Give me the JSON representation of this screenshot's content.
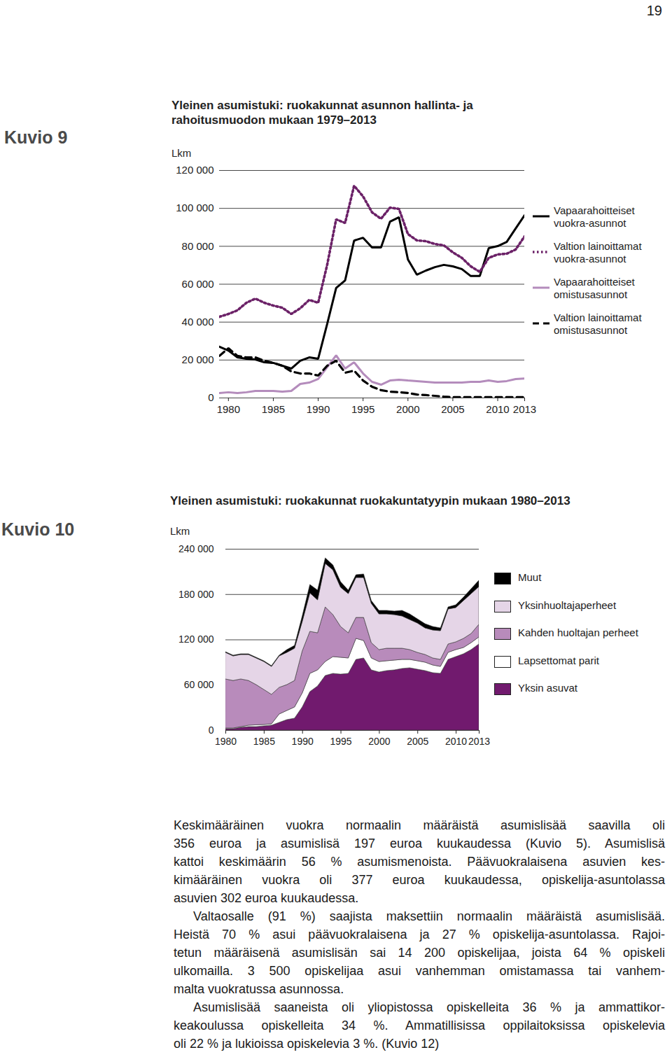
{
  "page_number": "19",
  "chart_data": [
    {
      "figure_label": "Kuvio 9",
      "type": "line",
      "title": "Yleinen asumistuki: ruokakunnat asunnon hallinta- ja rahoitusmuodon mukaan 1979–2013",
      "ylabel": "Lkm",
      "x": [
        1979,
        1980,
        1981,
        1982,
        1983,
        1984,
        1985,
        1986,
        1987,
        1988,
        1989,
        1990,
        1991,
        1992,
        1993,
        1994,
        1995,
        1996,
        1997,
        1998,
        1999,
        2000,
        2001,
        2002,
        2003,
        2004,
        2005,
        2006,
        2007,
        2008,
        2009,
        2010,
        2011,
        2012,
        2013
      ],
      "series": [
        {
          "name": "Vapaarahoitteiset vuokra-asunnot",
          "color": "#000000",
          "line_style": "solid",
          "values": [
            27000,
            25000,
            21400,
            20700,
            20300,
            18800,
            18500,
            17000,
            15500,
            19600,
            21400,
            20700,
            39000,
            58000,
            62000,
            83000,
            84500,
            79400,
            79400,
            93000,
            95300,
            73000,
            65000,
            67200,
            69000,
            70200,
            69400,
            68000,
            64300,
            64300,
            79000,
            80100,
            82300,
            89400,
            96400
          ]
        },
        {
          "name": "Valtion lainoittamat vuokra-asunnot",
          "color": "#6b2167",
          "line_style": "dotted",
          "values": [
            42800,
            44300,
            46200,
            50200,
            52400,
            50200,
            48700,
            47600,
            44300,
            47300,
            51700,
            50200,
            70200,
            94200,
            92300,
            111900,
            106300,
            97900,
            94500,
            100400,
            99700,
            86400,
            83100,
            82700,
            81200,
            80500,
            76800,
            73900,
            69400,
            66500,
            73900,
            75700,
            76100,
            78300,
            85300
          ]
        },
        {
          "name": "Vapaarahoitteiset omistusasunnot",
          "color": "#b48cbc",
          "line_style": "solid",
          "values": [
            2600,
            3000,
            2600,
            3000,
            3700,
            3700,
            3700,
            3300,
            3700,
            7400,
            8100,
            10000,
            16200,
            22500,
            15500,
            18800,
            12900,
            8500,
            7000,
            9200,
            9600,
            9200,
            8900,
            8500,
            8100,
            8100,
            8100,
            8100,
            8500,
            8500,
            9200,
            8500,
            8900,
            10000,
            10300
          ]
        },
        {
          "name": "Valtion lainoittamat omistusasunnot",
          "color": "#000000",
          "line_style": "dashed",
          "values": [
            22200,
            26200,
            22200,
            21400,
            21400,
            19600,
            18500,
            17000,
            14000,
            12900,
            12900,
            11800,
            17000,
            19600,
            13300,
            14400,
            9200,
            5900,
            4100,
            3300,
            3000,
            2600,
            1800,
            1500,
            1100,
            700,
            400,
            400,
            400,
            400,
            400,
            400,
            400,
            400,
            400
          ]
        }
      ],
      "xlim": [
        1979,
        2013
      ],
      "xticks": [
        1980,
        1985,
        1990,
        1995,
        2000,
        2005,
        2010,
        2013
      ],
      "ylim": [
        0,
        120000
      ],
      "yticks": [
        0,
        {
          "value": 20000,
          "label": "20 000"
        },
        {
          "value": 40000,
          "label": "40 000"
        },
        {
          "value": 60000,
          "label": "60 000"
        },
        {
          "value": 80000,
          "label": "80 000"
        },
        {
          "value": 100000,
          "label": "100 000"
        },
        {
          "value": 120000,
          "label": "120 000"
        }
      ],
      "grid": true,
      "legend": "right"
    },
    {
      "figure_label": "Kuvio 10",
      "type": "area",
      "stacked": true,
      "title": "Yleinen asumistuki: ruokakunnat ruokakuntatyypin mukaan 1980–2013",
      "ylabel": "Lkm",
      "x": [
        1980,
        1981,
        1982,
        1983,
        1984,
        1985,
        1986,
        1987,
        1988,
        1989,
        1990,
        1991,
        1992,
        1993,
        1994,
        1995,
        1996,
        1997,
        1998,
        1999,
        2000,
        2001,
        2002,
        2003,
        2004,
        2005,
        2006,
        2007,
        2008,
        2009,
        2010,
        2011,
        2012,
        2013
      ],
      "series": [
        {
          "name": "Yksin asuvat",
          "color": "#711a6e",
          "values": [
            1900,
            1900,
            3700,
            4600,
            4600,
            5600,
            6500,
            10200,
            13900,
            15800,
            30600,
            51000,
            58400,
            72300,
            75100,
            74100,
            75100,
            93600,
            95500,
            79700,
            76900,
            78800,
            79700,
            81600,
            82500,
            80600,
            78800,
            76000,
            75100,
            93600,
            97300,
            101000,
            106600,
            114000
          ]
        },
        {
          "name": "Lapsettomat parit",
          "color": "#ffffff",
          "values": [
            900,
            900,
            900,
            1900,
            2400,
            1800,
            1800,
            11100,
            12100,
            14800,
            18500,
            24100,
            21300,
            18500,
            22200,
            22300,
            20400,
            27800,
            23100,
            15800,
            13900,
            13000,
            13000,
            12000,
            11100,
            11200,
            11100,
            10200,
            9200,
            9400,
            9300,
            8400,
            9200,
            9300
          ]
        },
        {
          "name": "Kahden huoltajan perheet",
          "color": "#b88bbb",
          "values": [
            64900,
            62900,
            63100,
            59200,
            53200,
            46400,
            39000,
            35300,
            34200,
            35100,
            55600,
            55600,
            49100,
            72300,
            55600,
            40800,
            33300,
            27800,
            30600,
            20300,
            15800,
            16600,
            15700,
            14800,
            13000,
            11100,
            10200,
            9300,
            9300,
            11000,
            10200,
            12000,
            12100,
            16700
          ]
        },
        {
          "name": "Yksinhuoltajaperheet",
          "color": "#e5d5e7",
          "values": [
            35200,
            32500,
            32400,
            34400,
            35300,
            37000,
            37000,
            41600,
            42700,
            42700,
            38900,
            50900,
            43600,
            57500,
            59300,
            51900,
            51900,
            52800,
            52800,
            52000,
            47200,
            45400,
            44500,
            42700,
            39800,
            38900,
            35200,
            37000,
            38000,
            46300,
            45400,
            50100,
            52800,
            50000
          ]
        },
        {
          "name": "Muut",
          "color": "#000000",
          "values": [
            900,
            1000,
            900,
            900,
            900,
            1000,
            1000,
            1000,
            3700,
            3700,
            7500,
            11200,
            13000,
            7400,
            6500,
            7400,
            4700,
            3700,
            4700,
            3700,
            4700,
            4700,
            4700,
            7400,
            7400,
            5500,
            5600,
            4700,
            3700,
            2800,
            3700,
            4600,
            6500,
            8300
          ]
        }
      ],
      "xlim": [
        1980,
        2013
      ],
      "xticks": [
        1980,
        1985,
        1990,
        1995,
        2000,
        2005,
        2010,
        2013
      ],
      "ylim": [
        0,
        240000
      ],
      "yticks": [
        0,
        {
          "value": 60000,
          "label": "60 000"
        },
        {
          "value": 120000,
          "label": "120 000"
        },
        {
          "value": 180000,
          "label": "180 000"
        },
        {
          "value": 240000,
          "label": "240 000"
        }
      ],
      "grid": true,
      "legend": "right"
    }
  ],
  "text": {
    "paragraphs": [
      [
        "Keskimääräinen vuokra normaalin määräistä asumislisää saavilla oli",
        "356 euroa ja asumislisä 197 euroa kuukaudessa (Kuvio 5). Asumislisä",
        "kattoi keskimäärin 56 % asumismenoista. Päävuokralaisena asuvien kes-",
        "kimääräinen vuokra oli 377 euroa kuukaudessa, opiskelija-asuntolassa",
        "asuvien 302 euroa kuukaudessa."
      ],
      [
        "Valtaosalle (91 %) saajista maksettiin normaalin määräistä asumislisää.",
        "Heistä 70 % asui päävuokralaisena ja 27 % opiskelija-asuntolassa. Rajoi-",
        "tetun määräisenä asumislisän sai 14 200 opiskelijaa, joista 64 % opiskeli",
        "ulkomailla. 3 500 opiskelijaa asui vanhemman omistamassa tai vanhem-",
        "malta vuokratussa asunnossa."
      ],
      [
        "Asumislisää saaneista oli yliopistossa opiskelleita 36 % ja ammattikor-",
        "keakoulussa opiskelleita 34 %. Ammatillisissa oppilaitoksissa opiskelevia",
        "oli 22 % ja lukioissa opiskelevia 3 %. (Kuvio 12)"
      ]
    ]
  }
}
